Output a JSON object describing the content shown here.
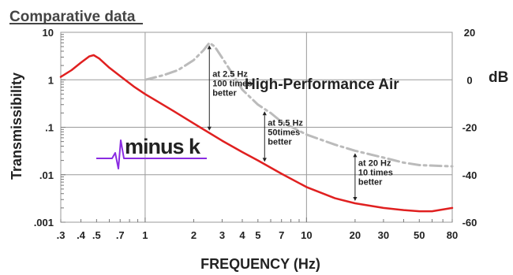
{
  "chart_data": {
    "type": "line",
    "title": "Comparative data",
    "xlabel": "FREQUENCY (Hz)",
    "ylabel": "Transmissibility",
    "y2label": "dB",
    "x_scale": "log",
    "y_scale": "log",
    "xlim": [
      0.3,
      80
    ],
    "ylim": [
      0.001,
      10
    ],
    "y2lim": [
      -60,
      20
    ],
    "grid": true,
    "x_ticks": [
      0.3,
      0.4,
      0.5,
      0.7,
      1,
      2,
      3,
      4,
      5,
      7,
      10,
      20,
      30,
      50,
      80
    ],
    "x_tick_labels": [
      ".3",
      ".4",
      ".5",
      ".7",
      "1",
      "2",
      "3",
      "4",
      "5",
      "7",
      "10",
      "20",
      "30",
      "50",
      "80"
    ],
    "y_ticks": [
      0.001,
      0.01,
      0.1,
      1,
      10
    ],
    "y_tick_labels": [
      ".001",
      ".01",
      ".1",
      "1",
      "10"
    ],
    "y2_ticks": [
      -60,
      -40,
      -20,
      0,
      20
    ],
    "y2_tick_labels": [
      "-60",
      "-40",
      "-20",
      "0",
      "20"
    ],
    "series": [
      {
        "label": "minus k",
        "color": "#e02020",
        "style": "solid",
        "x": [
          0.3,
          0.35,
          0.4,
          0.45,
          0.48,
          0.52,
          0.6,
          0.7,
          0.85,
          1,
          1.5,
          2,
          3,
          4,
          5,
          7,
          10,
          15,
          20,
          30,
          40,
          50,
          60,
          80
        ],
        "y": [
          1.15,
          1.6,
          2.3,
          3.1,
          3.3,
          2.8,
          1.8,
          1.2,
          0.72,
          0.5,
          0.22,
          0.12,
          0.052,
          0.03,
          0.02,
          0.0105,
          0.0055,
          0.0032,
          0.0025,
          0.002,
          0.0018,
          0.0017,
          0.0017,
          0.002
        ]
      },
      {
        "label": "High-Performance Air",
        "color": "#bbbbbb",
        "style": "dash-dot",
        "x": [
          1,
          1.3,
          1.6,
          2,
          2.3,
          2.5,
          2.7,
          3,
          3.5,
          4,
          5,
          6,
          7,
          10,
          15,
          20,
          30,
          40,
          50,
          80
        ],
        "y": [
          1.0,
          1.25,
          1.6,
          2.6,
          4.2,
          6.0,
          5.0,
          2.9,
          1.3,
          0.62,
          0.3,
          0.2,
          0.13,
          0.07,
          0.043,
          0.032,
          0.023,
          0.018,
          0.016,
          0.015
        ]
      }
    ],
    "annotations": [
      {
        "lines": [
          "at 2.5 Hz",
          "100 times",
          "better"
        ],
        "x": 2.5
      },
      {
        "lines": [
          "at 5.5 Hz",
          "50times",
          "better"
        ],
        "x": 5.5
      },
      {
        "lines": [
          "at 20 Hz",
          "10 times",
          "better"
        ],
        "x": 20
      }
    ],
    "logo_text": "minus k"
  }
}
